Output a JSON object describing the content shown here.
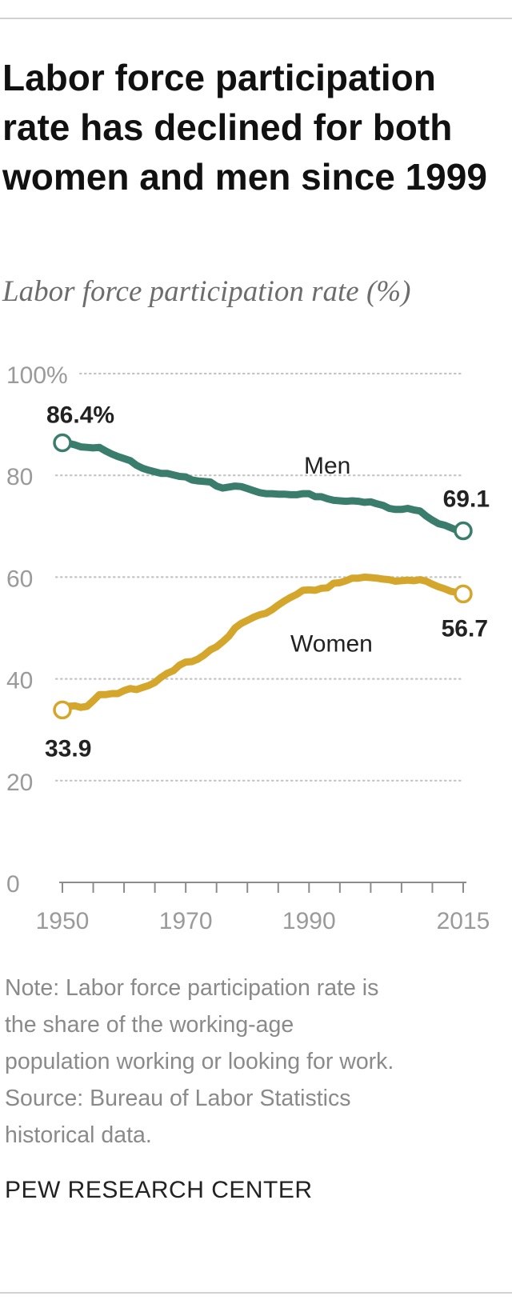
{
  "chart_data": {
    "type": "line",
    "title": "Labor force participation rate has declined for both women and men since 1999",
    "subtitle": "Labor force participation rate (%)",
    "ylim": [
      0,
      100
    ],
    "xlim": [
      1950,
      2015
    ],
    "y_ticks": [
      0,
      20,
      40,
      60,
      80,
      100
    ],
    "y_tick_labels": [
      "0",
      "20",
      "40",
      "60",
      "80",
      "100%"
    ],
    "x_tick_labels": [
      "1950",
      "1970",
      "1990",
      "2015"
    ],
    "x_tick_values": [
      1950,
      1970,
      1990,
      2015
    ],
    "x_minor_ticks": [
      1955,
      1960,
      1965,
      1970,
      1975,
      1980,
      1985,
      1990,
      1995,
      2000,
      2005,
      2010,
      2015
    ],
    "grid": true,
    "series": [
      {
        "name": "Men",
        "color": "#3a7d6c",
        "x": [
          1950,
          1951,
          1952,
          1953,
          1954,
          1955,
          1956,
          1957,
          1958,
          1959,
          1960,
          1961,
          1962,
          1963,
          1964,
          1965,
          1966,
          1967,
          1968,
          1969,
          1970,
          1971,
          1972,
          1973,
          1974,
          1975,
          1976,
          1977,
          1978,
          1979,
          1980,
          1981,
          1982,
          1983,
          1984,
          1985,
          1986,
          1987,
          1988,
          1989,
          1990,
          1991,
          1992,
          1993,
          1994,
          1995,
          1996,
          1997,
          1998,
          1999,
          2000,
          2001,
          2002,
          2003,
          2004,
          2005,
          2006,
          2007,
          2008,
          2009,
          2010,
          2011,
          2012,
          2013,
          2014,
          2015
        ],
        "values": [
          86.4,
          86.3,
          86.0,
          85.6,
          85.5,
          85.4,
          85.5,
          84.8,
          84.2,
          83.7,
          83.3,
          82.9,
          82.0,
          81.4,
          81.0,
          80.7,
          80.4,
          80.4,
          80.1,
          79.8,
          79.7,
          79.1,
          78.9,
          78.8,
          78.7,
          77.9,
          77.5,
          77.7,
          77.9,
          77.8,
          77.4,
          77.0,
          76.6,
          76.4,
          76.4,
          76.3,
          76.3,
          76.2,
          76.2,
          76.4,
          76.4,
          75.8,
          75.8,
          75.4,
          75.1,
          75.0,
          74.9,
          75.0,
          74.9,
          74.7,
          74.8,
          74.4,
          74.1,
          73.5,
          73.3,
          73.3,
          73.5,
          73.2,
          73.0,
          72.0,
          71.2,
          70.5,
          70.2,
          69.7,
          69.2,
          69.1
        ],
        "end_labels": {
          "start": "86.4%",
          "end": "69.1"
        }
      },
      {
        "name": "Women",
        "color": "#d4a72c",
        "x": [
          1950,
          1951,
          1952,
          1953,
          1954,
          1955,
          1956,
          1957,
          1958,
          1959,
          1960,
          1961,
          1962,
          1963,
          1964,
          1965,
          1966,
          1967,
          1968,
          1969,
          1970,
          1971,
          1972,
          1973,
          1974,
          1975,
          1976,
          1977,
          1978,
          1979,
          1980,
          1981,
          1982,
          1983,
          1984,
          1985,
          1986,
          1987,
          1988,
          1989,
          1990,
          1991,
          1992,
          1993,
          1994,
          1995,
          1996,
          1997,
          1998,
          1999,
          2000,
          2001,
          2002,
          2003,
          2004,
          2005,
          2006,
          2007,
          2008,
          2009,
          2010,
          2011,
          2012,
          2013,
          2014,
          2015
        ],
        "values": [
          33.9,
          34.6,
          34.7,
          34.4,
          34.6,
          35.7,
          36.9,
          36.9,
          37.1,
          37.1,
          37.7,
          38.1,
          37.9,
          38.3,
          38.7,
          39.3,
          40.3,
          41.1,
          41.6,
          42.7,
          43.3,
          43.4,
          43.9,
          44.7,
          45.7,
          46.3,
          47.3,
          48.4,
          50.0,
          50.9,
          51.5,
          52.1,
          52.6,
          52.9,
          53.6,
          54.5,
          55.3,
          56.0,
          56.6,
          57.4,
          57.5,
          57.4,
          57.8,
          57.9,
          58.8,
          58.9,
          59.3,
          59.8,
          59.8,
          60.0,
          59.9,
          59.8,
          59.6,
          59.5,
          59.2,
          59.3,
          59.4,
          59.3,
          59.5,
          59.2,
          58.6,
          58.1,
          57.7,
          57.2,
          57.0,
          56.7
        ],
        "end_labels": {
          "start": "33.9",
          "end": "56.7"
        }
      }
    ],
    "annotations": [
      {
        "text": "Men",
        "series": "Men"
      },
      {
        "text": "Women",
        "series": "Women"
      }
    ]
  },
  "note": {
    "lines": [
      "Note: Labor force participation rate is",
      "the share of the working-age",
      "population working or looking for work.",
      "Source: Bureau of Labor Statistics",
      "historical data."
    ]
  },
  "brand": "PEW RESEARCH CENTER"
}
